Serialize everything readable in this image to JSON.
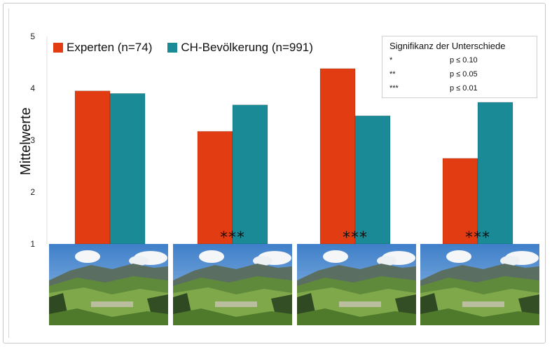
{
  "chart_data": {
    "type": "bar",
    "categories": [
      "",
      "",
      "",
      ""
    ],
    "series": [
      {
        "name": "Experten (n=74)",
        "color": "#e23d12",
        "values": [
          3.95,
          3.17,
          4.38,
          2.65
        ]
      },
      {
        "name": "CH-Bevölkerung (n=991)",
        "color": "#1a8a96",
        "values": [
          3.9,
          3.68,
          3.47,
          3.73
        ]
      }
    ],
    "title": "",
    "xlabel": "",
    "ylabel": "Mittelwerte",
    "ylim": [
      1,
      5
    ],
    "yticks": [
      "1",
      "2",
      "3",
      "4",
      "5"
    ],
    "annotations": [
      "",
      "***",
      "***",
      "***"
    ],
    "grid": false,
    "legend_position": "top-left"
  },
  "significance": {
    "title": "Signifikanz der Unterschiede",
    "rows": [
      {
        "symbol": "*",
        "label": "p ≤ 0.10"
      },
      {
        "symbol": "**",
        "label": "p ≤ 0.05"
      },
      {
        "symbol": "***",
        "label": "p ≤ 0.01"
      }
    ]
  },
  "colors": {
    "experts": "#e23d12",
    "population": "#1a8a96",
    "background": "#ffffff"
  },
  "images": [
    "mountain-valley-photo",
    "mountain-valley-photo",
    "mountain-valley-photo",
    "mountain-valley-photo"
  ]
}
